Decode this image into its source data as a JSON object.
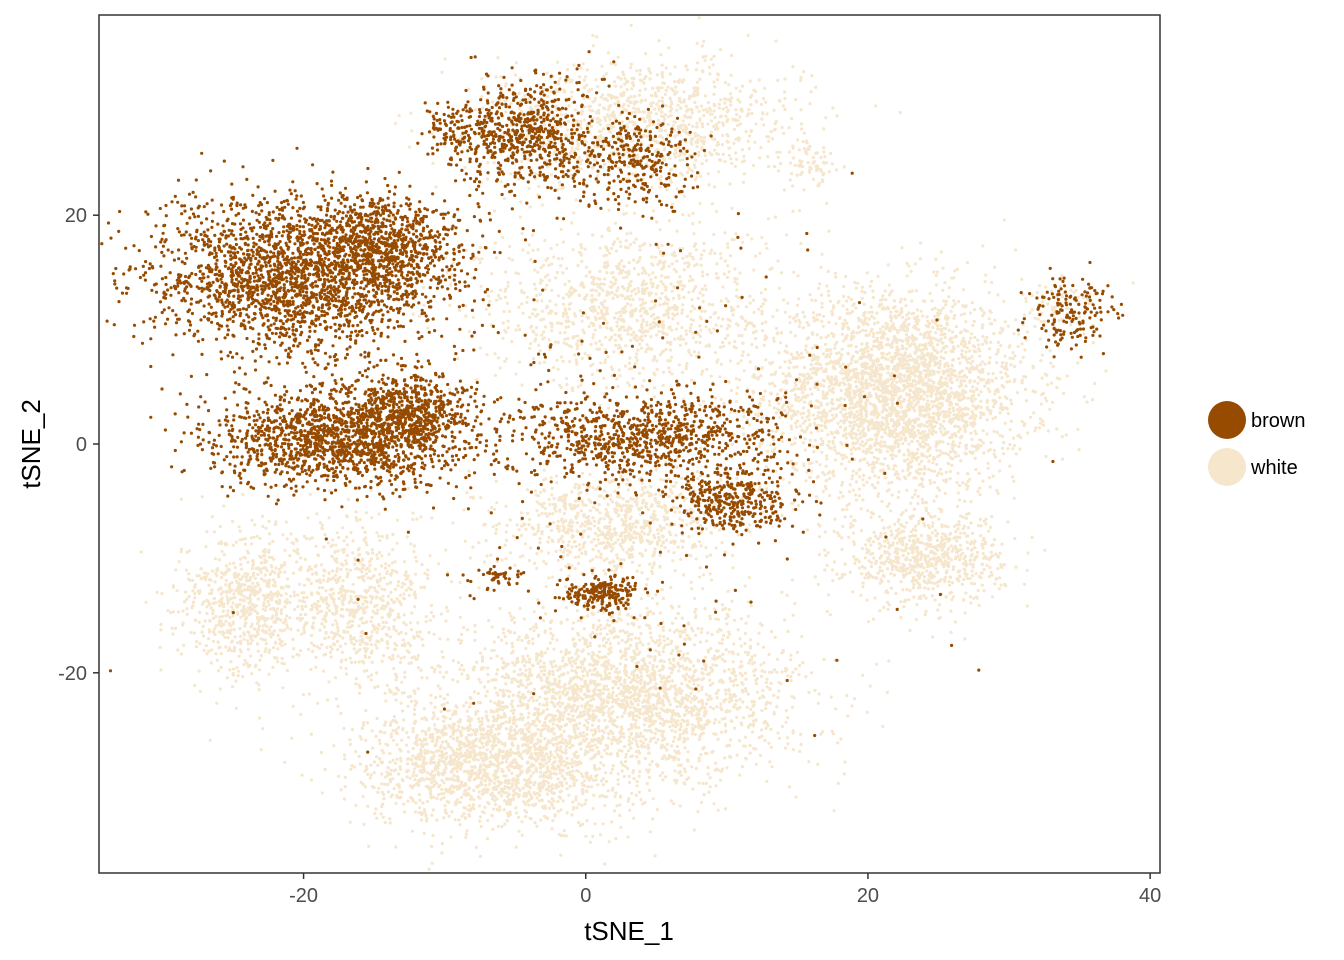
{
  "chart_data": {
    "type": "scatter",
    "title": "",
    "xlabel": "tSNE_1",
    "ylabel": "tSNE_2",
    "xlim": [
      -34.5,
      40.7
    ],
    "ylim": [
      -37.5,
      37.5
    ],
    "x_ticks": [
      -20,
      0,
      20,
      40
    ],
    "y_ticks": [
      -20,
      0,
      20
    ],
    "grid": false,
    "legend_position": "right",
    "colors": {
      "brown": "#964B00",
      "white": "#F5E6CC",
      "axis": "#333333"
    },
    "series": [
      {
        "name": "brown",
        "color": "#964B00",
        "clusters": [
          {
            "cx": -20.5,
            "cy": 14.5,
            "sx": 6.5,
            "sy": 4.2,
            "n": 2200
          },
          {
            "cx": -14.5,
            "cy": 17.5,
            "sx": 3.5,
            "sy": 2.8,
            "n": 700
          },
          {
            "cx": -17.5,
            "cy": 0.5,
            "sx": 5.5,
            "sy": 2.6,
            "n": 1500
          },
          {
            "cx": -12.5,
            "cy": 3.0,
            "sx": 2.5,
            "sy": 2.2,
            "n": 500
          },
          {
            "cx": -4.0,
            "cy": 27.0,
            "sx": 3.0,
            "sy": 3.2,
            "n": 600
          },
          {
            "cx": -8.5,
            "cy": 27.0,
            "sx": 1.8,
            "sy": 1.8,
            "n": 150
          },
          {
            "cx": 3.5,
            "cy": 24.5,
            "sx": 2.5,
            "sy": 2.5,
            "n": 300
          },
          {
            "cx": 4.0,
            "cy": 0.5,
            "sx": 6.0,
            "sy": 2.5,
            "n": 900
          },
          {
            "cx": 10.5,
            "cy": -5.0,
            "sx": 2.5,
            "sy": 1.8,
            "n": 350
          },
          {
            "cx": 1.0,
            "cy": -13.0,
            "sx": 1.8,
            "sy": 1.0,
            "n": 220
          },
          {
            "cx": -6.0,
            "cy": -11.5,
            "sx": 1.2,
            "sy": 0.6,
            "n": 40
          },
          {
            "cx": 34.5,
            "cy": 11.5,
            "sx": 1.8,
            "sy": 2.0,
            "n": 160
          },
          {
            "cx": 0.0,
            "cy": 0.0,
            "sx": 14.0,
            "sy": 14.0,
            "n": 250
          }
        ]
      },
      {
        "name": "white",
        "color": "#F5E6CC",
        "clusters": [
          {
            "cx": 22.0,
            "cy": 4.5,
            "sx": 5.8,
            "sy": 5.5,
            "n": 3000
          },
          {
            "cx": 24.0,
            "cy": -10.0,
            "sx": 3.5,
            "sy": 2.5,
            "n": 700
          },
          {
            "cx": 4.0,
            "cy": 28.0,
            "sx": 7.0,
            "sy": 3.5,
            "n": 1100
          },
          {
            "cx": 3.0,
            "cy": 12.0,
            "sx": 6.5,
            "sy": 4.5,
            "n": 1100
          },
          {
            "cx": -7.0,
            "cy": -28.0,
            "sx": 5.5,
            "sy": 3.5,
            "n": 1500
          },
          {
            "cx": 3.0,
            "cy": -22.0,
            "sx": 7.5,
            "sy": 5.0,
            "n": 2400
          },
          {
            "cx": -24.0,
            "cy": -14.0,
            "sx": 3.0,
            "sy": 4.0,
            "n": 700
          },
          {
            "cx": -16.0,
            "cy": -14.0,
            "sx": 3.5,
            "sy": 4.5,
            "n": 700
          },
          {
            "cx": 2.0,
            "cy": -7.0,
            "sx": 5.0,
            "sy": 2.8,
            "n": 800
          },
          {
            "cx": 16.0,
            "cy": 24.5,
            "sx": 1.0,
            "sy": 1.3,
            "n": 60
          },
          {
            "cx": 33.5,
            "cy": 12.0,
            "sx": 1.5,
            "sy": 1.5,
            "n": 60
          }
        ]
      }
    ]
  }
}
